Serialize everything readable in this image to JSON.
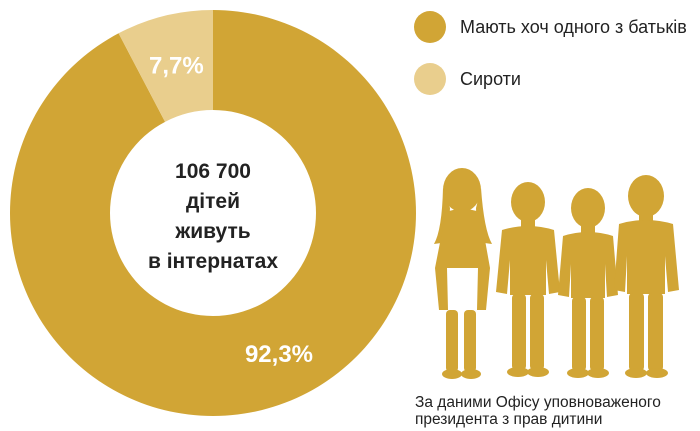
{
  "chart_data": {
    "type": "pie",
    "style": "donut",
    "categories": [
      "Мають хоч одного з батьків",
      "Сироти"
    ],
    "values": [
      92.3,
      7.7
    ],
    "value_labels": [
      "92,3%",
      "7,7%"
    ],
    "colors": [
      "#D1A535",
      "#E9CE8D"
    ],
    "center_label": [
      "106 700",
      "дітей",
      "живуть",
      "в інтернатах"
    ],
    "legend_position": "top-right"
  },
  "source_note": {
    "line1": "За даними Офісу уповноваженого",
    "line2": "президента з прав дитини"
  },
  "illustration": {
    "icon": "children-silhouette-icon",
    "color": "#D1A535"
  }
}
